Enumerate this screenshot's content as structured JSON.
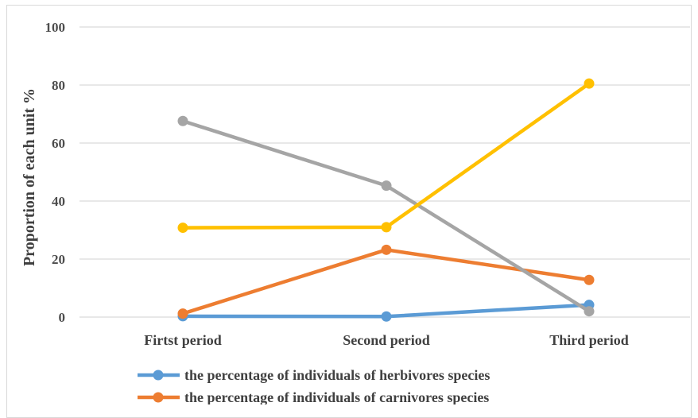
{
  "chart_data": {
    "type": "line",
    "title": "",
    "xlabel": "",
    "ylabel": "Proportion of each unit %",
    "ylim": [
      0,
      100
    ],
    "yticks": [
      0,
      20,
      40,
      60,
      80,
      100
    ],
    "grid": true,
    "legend_position": "bottom",
    "categories": [
      "Firtst period",
      "Second period",
      "Third period"
    ],
    "series": [
      {
        "name": "the percentage of individuals of herbivores species",
        "color": "#5b9bd5",
        "values": [
          0.3,
          0.2,
          4.2
        ]
      },
      {
        "name": "the percentage of individuals of carnivores species",
        "color": "#ed7d31",
        "values": [
          1.2,
          23.2,
          12.8
        ]
      },
      {
        "color": "#a5a5a5",
        "values": [
          67.6,
          45.3,
          2.0
        ]
      },
      {
        "color": "#ffc000",
        "values": [
          30.8,
          31.0,
          80.5
        ]
      }
    ]
  }
}
